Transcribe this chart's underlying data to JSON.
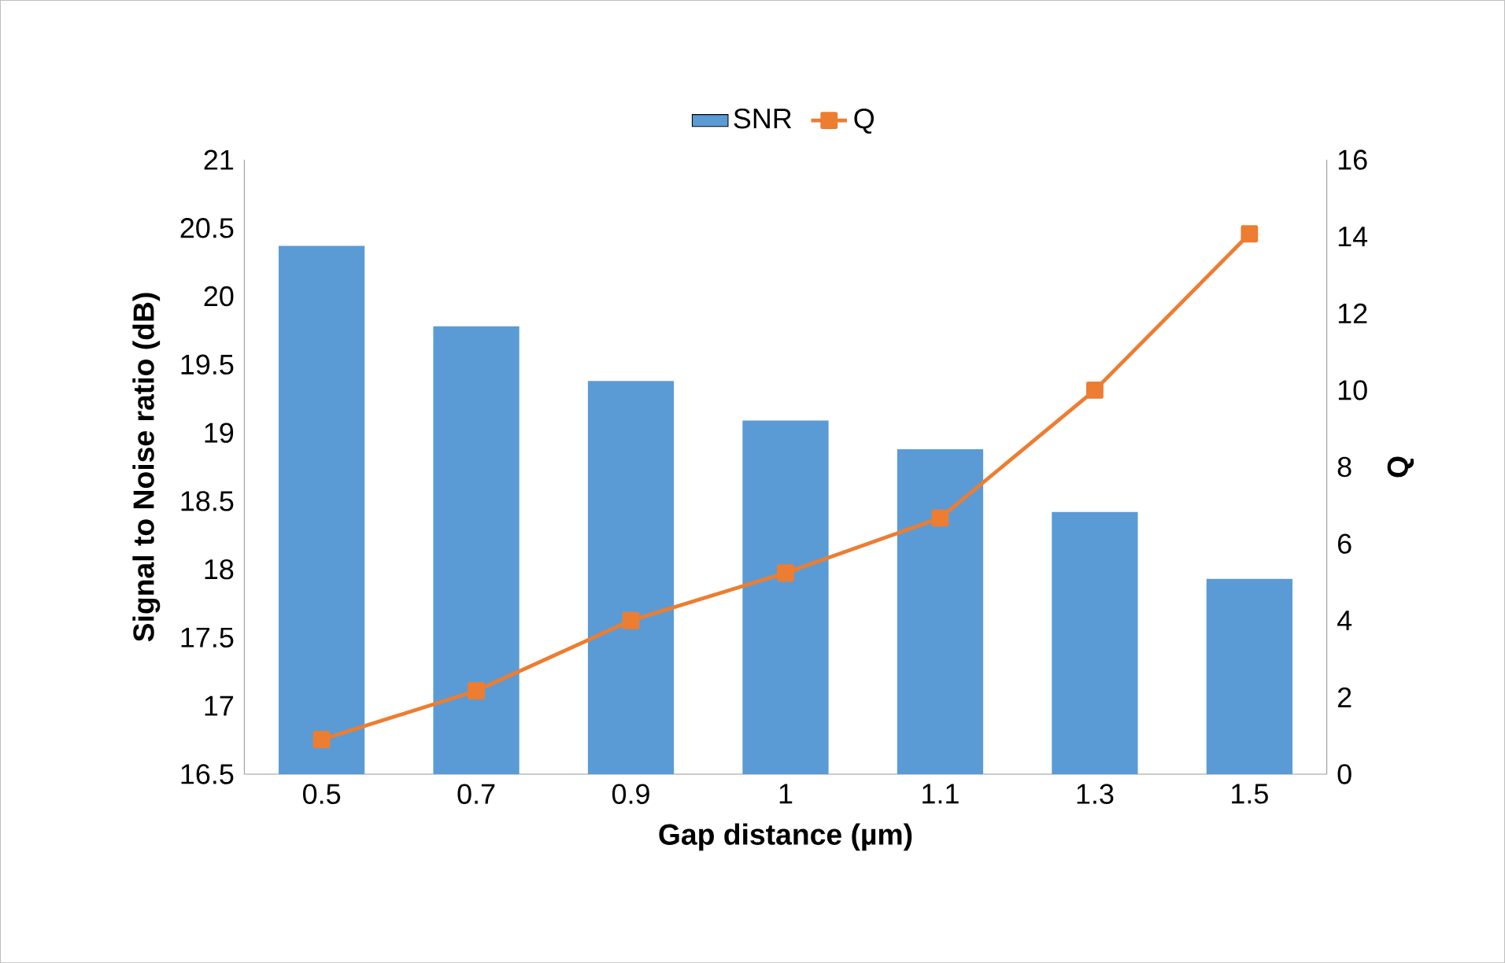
{
  "chart_data": {
    "type": "bar",
    "xlabel": "Gap distance (µm)",
    "ylabel": "Signal to Noise ratio (dB)",
    "y2label": "Q",
    "categories": [
      "0.5",
      "0.7",
      "0.9",
      "1",
      "1.1",
      "1.3",
      "1.5"
    ],
    "series": [
      {
        "name": "SNR",
        "color": "#5b9bd5",
        "values": [
          20.37,
          19.78,
          19.38,
          19.09,
          18.88,
          18.42,
          17.93
        ]
      },
      {
        "name": "Q",
        "type": "line",
        "axis": "y2",
        "color": "#ed7d31",
        "marker": "square",
        "values": [
          0.9,
          2.17,
          4.0,
          5.24,
          6.67,
          10.0,
          14.07
        ]
      }
    ],
    "ylim": [
      16.5,
      21
    ],
    "yticks": [
      16.5,
      17,
      17.5,
      18,
      18.5,
      19,
      19.5,
      20,
      20.5,
      21
    ],
    "y2lim": [
      0,
      16
    ],
    "y2ticks": [
      0,
      2,
      4,
      6,
      8,
      10,
      12,
      14,
      16
    ],
    "legend": "top"
  }
}
